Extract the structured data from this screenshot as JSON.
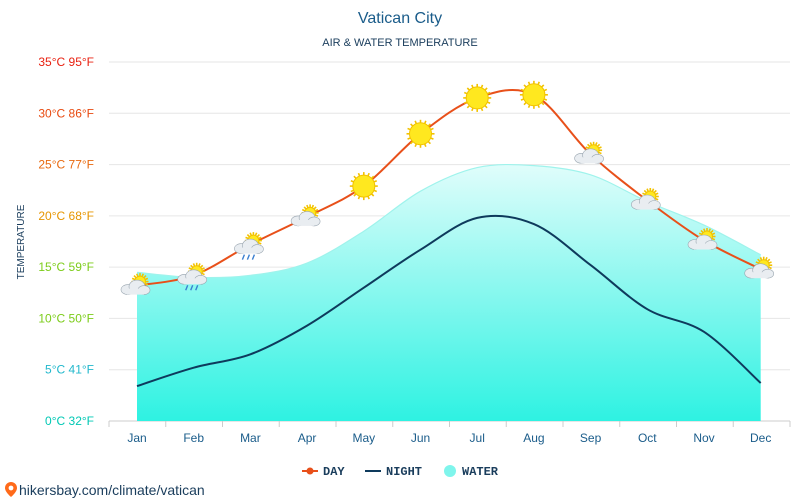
{
  "chart_data": {
    "type": "line",
    "title": "Vatican City",
    "subtitle": "AIR & WATER TEMPERATURE",
    "ylabel": "TEMPERATURE",
    "xlabel": "",
    "categories": [
      "Jan",
      "Feb",
      "Mar",
      "Apr",
      "May",
      "Jun",
      "Jul",
      "Aug",
      "Sep",
      "Oct",
      "Nov",
      "Dec"
    ],
    "ylim": [
      0,
      35
    ],
    "y_ticks": [
      {
        "value": 0,
        "label": "0°C 32°F",
        "color": "#00c8b4"
      },
      {
        "value": 5,
        "label": "5°C 41°F",
        "color": "#22b8cc"
      },
      {
        "value": 10,
        "label": "10°C 50°F",
        "color": "#7ccc1a"
      },
      {
        "value": 15,
        "label": "15°C 59°F",
        "color": "#7ccc1a"
      },
      {
        "value": 20,
        "label": "20°C 68°F",
        "color": "#e69500"
      },
      {
        "value": 25,
        "label": "25°C 77°F",
        "color": "#e86a10"
      },
      {
        "value": 30,
        "label": "30°C 86°F",
        "color": "#e84a10"
      },
      {
        "value": 35,
        "label": "35°C 95°F",
        "color": "#e82010"
      }
    ],
    "grid": true,
    "series": [
      {
        "name": "DAY",
        "color": "#e8501a",
        "values": [
          13.2,
          14.2,
          17.2,
          19.9,
          22.9,
          28.0,
          31.5,
          31.8,
          26.0,
          21.5,
          17.6,
          14.8
        ]
      },
      {
        "name": "NIGHT",
        "color": "#0e3a5c",
        "values": [
          3.4,
          5.2,
          6.5,
          9.3,
          13.0,
          16.7,
          19.8,
          19.2,
          15.2,
          10.9,
          8.7,
          3.7
        ]
      },
      {
        "name": "WATER",
        "color": "#7ff5ec",
        "values": [
          14.5,
          14.0,
          14.2,
          15.4,
          18.5,
          22.4,
          24.7,
          24.9,
          24.0,
          21.4,
          19.1,
          16.2
        ]
      }
    ],
    "weather_icons": [
      "cloud-sun",
      "cloud-sun-rain",
      "cloud-sun-rain",
      "cloud-sun",
      "sun",
      "sun",
      "sun",
      "sun",
      "cloud-sun",
      "cloud-sun",
      "cloud-sun",
      "cloud-sun"
    ],
    "legend_position": "bottom"
  },
  "footer": {
    "source": "hikersbay.com/climate/vatican"
  },
  "colors": {
    "title": "#1a5c8a",
    "axis_text": "#1a3d5c",
    "grid": "#e6e6e6"
  }
}
